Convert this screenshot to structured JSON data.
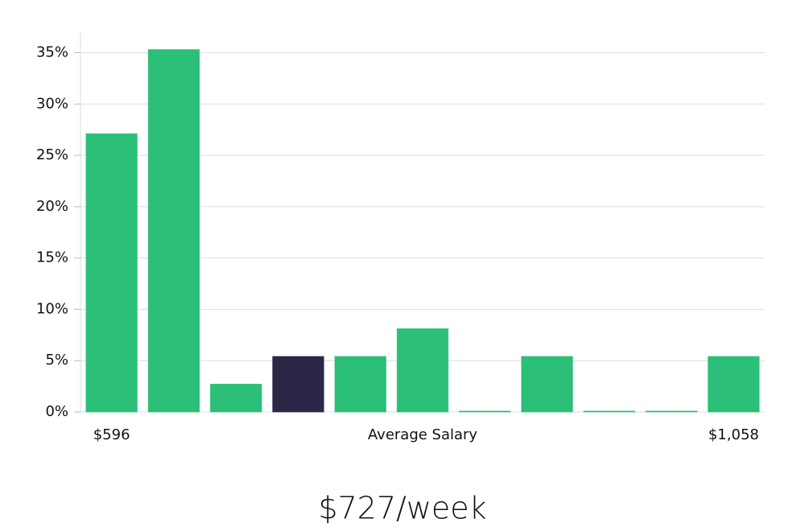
{
  "chart_data": {
    "type": "bar",
    "categories": [
      "$596",
      null,
      null,
      null,
      null,
      null,
      null,
      null,
      null,
      null,
      "$1,058"
    ],
    "values": [
      27.1,
      35.3,
      2.7,
      5.4,
      5.4,
      8.1,
      0,
      5.4,
      0,
      0,
      5.4
    ],
    "colors": [
      "#2bbf77",
      "#2bbf77",
      "#2bbf77",
      "#2a2747",
      "#2bbf77",
      "#2bbf77",
      "#2bbf77",
      "#2bbf77",
      "#2bbf77",
      "#2bbf77",
      "#2bbf77"
    ],
    "xlabel": "Average Salary",
    "annotation": "$727/week",
    "ylim": [
      0,
      37
    ],
    "yticks": [
      {
        "value": 0,
        "label": "0%"
      },
      {
        "value": 5,
        "label": "5%"
      },
      {
        "value": 10,
        "label": "10%"
      },
      {
        "value": 15,
        "label": "15%"
      },
      {
        "value": 20,
        "label": "20%"
      },
      {
        "value": 25,
        "label": "25%"
      },
      {
        "value": 30,
        "label": "30%"
      },
      {
        "value": 35,
        "label": "35%"
      }
    ],
    "grid": true
  }
}
